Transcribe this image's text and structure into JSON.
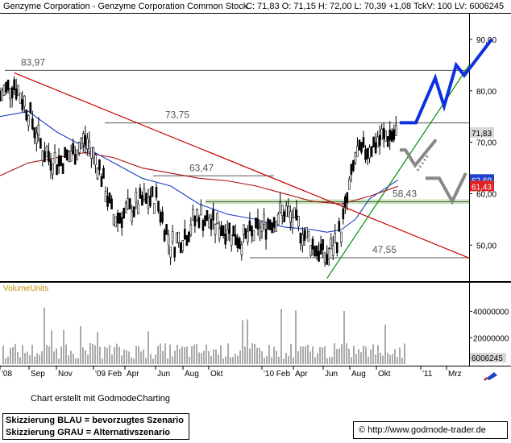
{
  "header": {
    "title": "Genzyme Corporation - Genzyme Corporation Common Stock",
    "quote": "C: 71,83  O: 71,15  H: 72,00  L: 70,39  +1,08  TckV: 100  LV: 6006245"
  },
  "chart_data": {
    "type": "candlestick",
    "title": "Genzyme Corporation - Genzyme Corporation Common Stock",
    "price_axis": {
      "ticks": [
        "90,00",
        "80,00",
        "70,00",
        "60,00",
        "50,00"
      ],
      "ylim": [
        43,
        95
      ]
    },
    "x_axis": {
      "ticks": [
        "'08",
        "Sep",
        "Nov",
        "'09 Feb",
        "Apr",
        "Jun",
        "Aug",
        "Okt",
        "'10 Feb",
        "Apr",
        "Jun",
        "Aug",
        "Okt",
        "'11",
        "Mrz"
      ]
    },
    "last_price": 71.83,
    "last_price_label": "71,83",
    "ma_labels": [
      "62,69",
      "61,43"
    ],
    "horizontal_levels": [
      {
        "label": "83,97",
        "value": 83.97
      },
      {
        "label": "73,75",
        "value": 73.75
      },
      {
        "label": "63,47",
        "value": 63.47
      },
      {
        "label": "58,43",
        "value": 58.43
      },
      {
        "label": "47,55",
        "value": 47.55
      }
    ],
    "support_zone": [
      58.0,
      58.9
    ],
    "price_series": [
      [
        "2008-07",
        79.0
      ],
      [
        "2008-08",
        81.5
      ],
      [
        "2008-09",
        76.0
      ],
      [
        "2008-10",
        68.5
      ],
      [
        "2008-11",
        66.0
      ],
      [
        "2008-12",
        67.5
      ],
      [
        "2009-01",
        70.5
      ],
      [
        "2009-02",
        65.0
      ],
      [
        "2009-03",
        55.0
      ],
      [
        "2009-04",
        56.5
      ],
      [
        "2009-05",
        58.5
      ],
      [
        "2009-06",
        59.0
      ],
      [
        "2009-07",
        50.0
      ],
      [
        "2009-08",
        52.0
      ],
      [
        "2009-09",
        56.0
      ],
      [
        "2009-10",
        54.0
      ],
      [
        "2009-11",
        53.0
      ],
      [
        "2009-12",
        51.0
      ],
      [
        "2010-01",
        52.5
      ],
      [
        "2010-02",
        54.5
      ],
      [
        "2010-03",
        56.5
      ],
      [
        "2010-04",
        53.5
      ],
      [
        "2010-05",
        50.0
      ],
      [
        "2010-06",
        47.5
      ],
      [
        "2010-07",
        53.0
      ],
      [
        "2010-08",
        67.0
      ],
      [
        "2010-09",
        69.0
      ],
      [
        "2010-10",
        71.0
      ],
      [
        "2010-11",
        71.83
      ]
    ],
    "ma_fast": [
      [
        "2008-07",
        75.0
      ],
      [
        "2008-09",
        76.0
      ],
      [
        "2008-11",
        72.0
      ],
      [
        "2009-01",
        69.0
      ],
      [
        "2009-03",
        66.0
      ],
      [
        "2009-05",
        63.0
      ],
      [
        "2009-07",
        61.5
      ],
      [
        "2009-09",
        58.0
      ],
      [
        "2009-11",
        56.0
      ],
      [
        "2010-01",
        55.0
      ],
      [
        "2010-03",
        53.5
      ],
      [
        "2010-05",
        53.0
      ],
      [
        "2010-06",
        52.5
      ],
      [
        "2010-07",
        53.0
      ],
      [
        "2010-08",
        55.0
      ],
      [
        "2010-09",
        59.0
      ],
      [
        "2010-11",
        62.69
      ]
    ],
    "ma_slow": [
      [
        "2008-07",
        63.5
      ],
      [
        "2008-09",
        66.0
      ],
      [
        "2008-11",
        67.0
      ],
      [
        "2009-01",
        68.0
      ],
      [
        "2009-03",
        67.0
      ],
      [
        "2009-05",
        65.0
      ],
      [
        "2009-07",
        64.0
      ],
      [
        "2009-09",
        63.0
      ],
      [
        "2009-11",
        62.5
      ],
      [
        "2010-01",
        61.5
      ],
      [
        "2010-03",
        60.0
      ],
      [
        "2010-05",
        58.5
      ],
      [
        "2010-07",
        58.0
      ],
      [
        "2010-09",
        59.5
      ],
      [
        "2010-11",
        61.43
      ]
    ],
    "volume_panel": {
      "label": "VolumeUnits",
      "ticks": [
        "40000000",
        "20000000"
      ],
      "last_value": "6006245"
    }
  },
  "colors": {
    "candles": "#000000",
    "ma_fast": "#1a3fc4",
    "ma_slow": "#b01010",
    "downtrend": "#cc0000",
    "uptrend": "#009000",
    "scenario_blue": "#1030e0",
    "scenario_grey": "#888888",
    "support_zone": "#c8e6b8",
    "ma_fast_badge": "#2040d0",
    "ma_slow_badge": "#e02020"
  },
  "footer": {
    "credit": "Chart erstellt mit GodmodeCharting",
    "scenario_blue": "Skizzierung BLAU = bevorzugtes Szenario",
    "scenario_grey": "Skizzierung GRAU = Alternativszenario",
    "url": "http://www.godmode-trader.de",
    "url_symbol": "©"
  }
}
